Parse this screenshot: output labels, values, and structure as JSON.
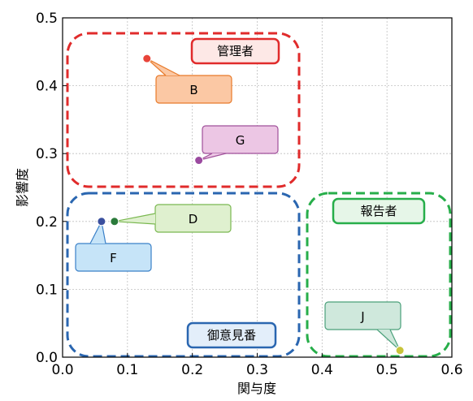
{
  "chart_data": {
    "type": "scatter",
    "title": "",
    "xlabel": "関与度",
    "ylabel": "影響度",
    "xlim": [
      0.0,
      0.6
    ],
    "ylim": [
      0.0,
      0.5
    ],
    "xticks": [
      "0.0",
      "0.1",
      "0.2",
      "0.3",
      "0.4",
      "0.5",
      "0.6"
    ],
    "yticks": [
      "0.0",
      "0.1",
      "0.2",
      "0.3",
      "0.4",
      "0.5"
    ],
    "grid": true,
    "points": [
      {
        "label": "B",
        "x": 0.13,
        "y": 0.44,
        "color": "#e8443a"
      },
      {
        "label": "G",
        "x": 0.21,
        "y": 0.29,
        "color": "#9b4aa0"
      },
      {
        "label": "D",
        "x": 0.08,
        "y": 0.2,
        "color": "#2a7a3a"
      },
      {
        "label": "F",
        "x": 0.06,
        "y": 0.2,
        "color": "#3a4f9e"
      },
      {
        "label": "J",
        "x": 0.52,
        "y": 0.01,
        "color": "#c8c43a"
      }
    ],
    "callouts": [
      {
        "label": "B",
        "fill": "#fbc8a4",
        "stroke": "#e87a2a"
      },
      {
        "label": "G",
        "fill": "#ecc6e4",
        "stroke": "#a0509a"
      },
      {
        "label": "D",
        "fill": "#dff0cf",
        "stroke": "#7ab850"
      },
      {
        "label": "F",
        "fill": "#c6e4f8",
        "stroke": "#3a80c8"
      },
      {
        "label": "J",
        "fill": "#cfe8dc",
        "stroke": "#4aa07a"
      }
    ],
    "groups": [
      {
        "label": "管理者",
        "color": "#e02b2b",
        "label_fill": "#fde8e6"
      },
      {
        "label": "御意見番",
        "color": "#2a66b0",
        "label_fill": "#e3eefa"
      },
      {
        "label": "報告者",
        "color": "#27ae4a",
        "label_fill": "#e6f6e8"
      }
    ]
  }
}
